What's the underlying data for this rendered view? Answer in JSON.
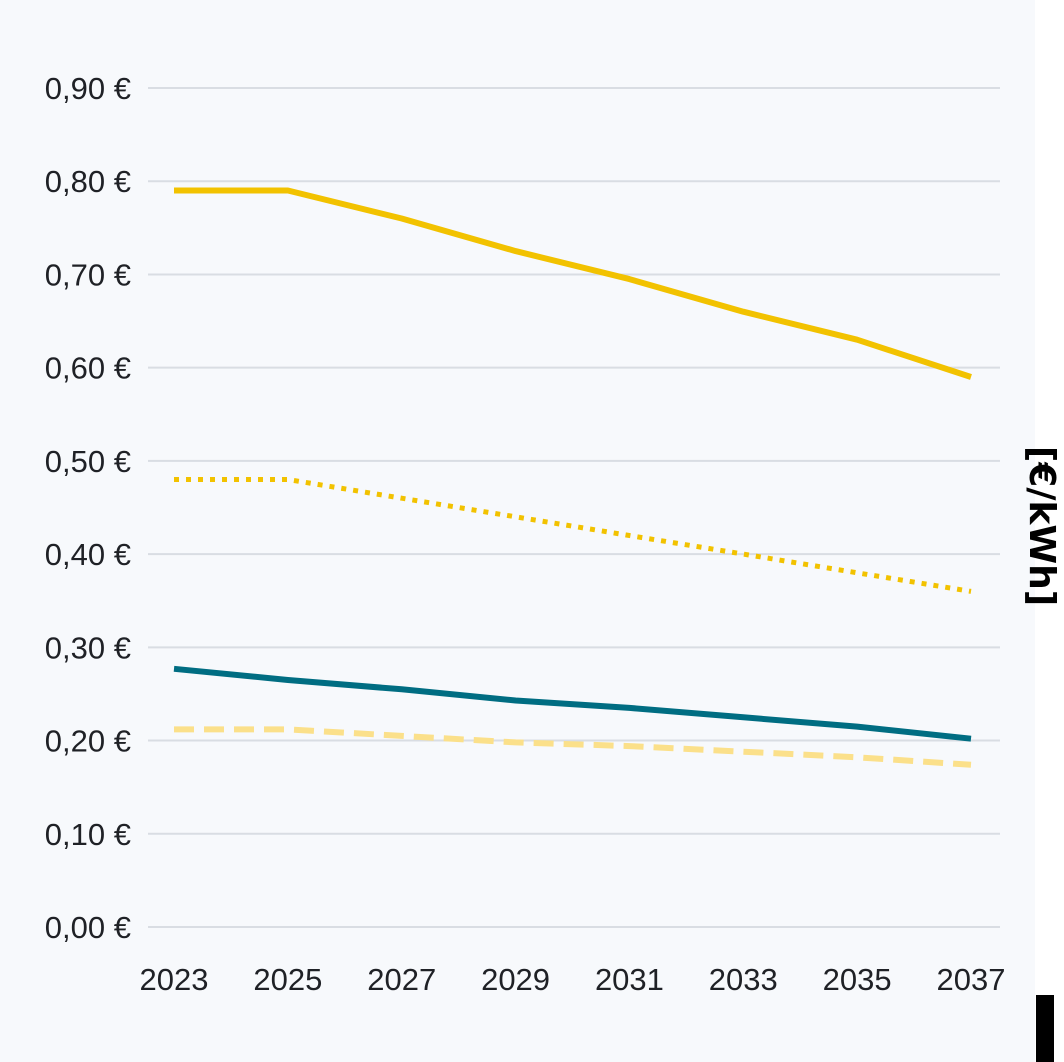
{
  "chart_data": {
    "type": "line",
    "title": "",
    "xlabel": "",
    "ylabel": "[€/kWh]",
    "x": [
      2023,
      2025,
      2027,
      2029,
      2031,
      2033,
      2035,
      2037
    ],
    "x_ticks": [
      "2023",
      "2025",
      "2027",
      "2029",
      "2031",
      "2033",
      "2035",
      "2037"
    ],
    "y_ticks": [
      "0,00 €",
      "0,10 €",
      "0,20 €",
      "0,30 €",
      "0,40 €",
      "0,50 €",
      "0,60 €",
      "0,70 €",
      "0,80 €",
      "0,90 €"
    ],
    "ylim": [
      0,
      0.9
    ],
    "xlim": [
      2023,
      2037
    ],
    "grid": true,
    "legend": "none",
    "series": [
      {
        "style": "solid",
        "color": "#f2c200",
        "values": [
          0.79,
          0.79,
          0.76,
          0.725,
          0.695,
          0.66,
          0.63,
          0.59
        ]
      },
      {
        "style": "dotted",
        "color": "#f2c200",
        "values": [
          0.48,
          0.48,
          0.46,
          0.44,
          0.42,
          0.4,
          0.38,
          0.36
        ]
      },
      {
        "style": "solid",
        "color": "#006d82",
        "values": [
          0.277,
          0.265,
          0.255,
          0.243,
          0.235,
          0.225,
          0.215,
          0.202
        ]
      },
      {
        "style": "dashed",
        "color": "#fbe08a",
        "values": [
          0.212,
          0.212,
          0.205,
          0.198,
          0.194,
          0.188,
          0.182,
          0.174
        ]
      }
    ]
  }
}
